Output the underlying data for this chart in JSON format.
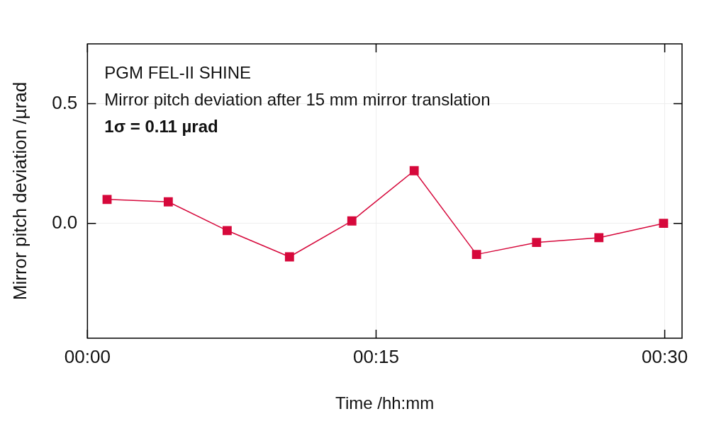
{
  "chart_data": {
    "type": "line",
    "xlabel": "Time /hh:mm",
    "ylabel": "Mirror pitch deviation /µrad",
    "annotations": [
      "PGM FEL-II SHINE",
      "Mirror pitch deviation after 15 mm mirror translation",
      "1σ = 0.11 µrad"
    ],
    "x": [
      0.017,
      0.07,
      0.121,
      0.175,
      0.229,
      0.283,
      0.337,
      0.389,
      0.443,
      0.499
    ],
    "series": [
      {
        "color": "#d6083b",
        "values": [
          0.1,
          0.09,
          -0.03,
          -0.14,
          0.01,
          0.22,
          -0.13,
          -0.08,
          -0.06,
          0.0
        ]
      }
    ],
    "xlim": [
      0,
      0.515
    ],
    "xticks": [
      {
        "value": 0,
        "label": "00:00"
      },
      {
        "value": 0.25,
        "label": "00:15"
      },
      {
        "value": 0.5,
        "label": "00:30"
      }
    ],
    "ylim": [
      -0.48,
      0.75
    ],
    "yticks": [
      {
        "value": 0,
        "label": "0.0"
      },
      {
        "value": 0.5,
        "label": "0.5"
      }
    ],
    "grid": true,
    "marker": "square",
    "line_style": "solid",
    "legend": false
  }
}
